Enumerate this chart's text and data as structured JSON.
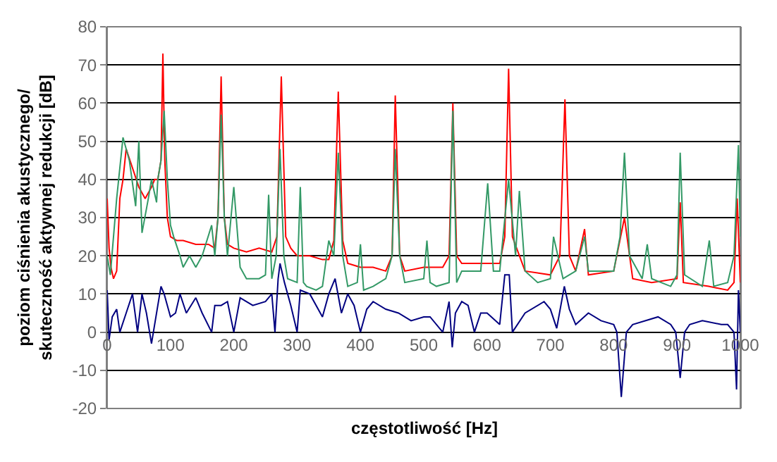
{
  "chart_data": {
    "type": "line",
    "xlabel": "częstotliwość [Hz]",
    "ylabel": "poziom ciśnienia akustycznego/\nskuteczność aktywnej redukcji [dB]",
    "xlim": [
      0,
      1000
    ],
    "xticks": [
      0,
      100,
      200,
      300,
      400,
      500,
      600,
      700,
      800,
      900,
      1000
    ],
    "ylim": [
      -20,
      80
    ],
    "yticks": [
      -20,
      -10,
      0,
      10,
      20,
      30,
      40,
      50,
      60,
      70,
      80
    ],
    "grid": "y",
    "marker": "none",
    "line_style": "solid",
    "series": [
      {
        "color": "#ff0000",
        "x": [
          0,
          3,
          6,
          10,
          15,
          20,
          25,
          30,
          40,
          50,
          60,
          70,
          75,
          80,
          85,
          88,
          91,
          95,
          100,
          110,
          120,
          140,
          160,
          170,
          175,
          180,
          185,
          190,
          200,
          220,
          240,
          260,
          268,
          275,
          282,
          290,
          300,
          320,
          340,
          350,
          358,
          365,
          372,
          380,
          400,
          420,
          440,
          450,
          455,
          462,
          470,
          500,
          530,
          540,
          546,
          552,
          560,
          600,
          620,
          628,
          634,
          640,
          660,
          700,
          715,
          723,
          730,
          740,
          754,
          760,
          800,
          817,
          830,
          860,
          900,
          905,
          910,
          950,
          980,
          990,
          995,
          1000
        ],
        "values": [
          35,
          22,
          17,
          14,
          16,
          35,
          40,
          48,
          43,
          38,
          35,
          38,
          40,
          40,
          45,
          73,
          45,
          30,
          25,
          24,
          24,
          23,
          23,
          22,
          30,
          67,
          30,
          23,
          22,
          21,
          22,
          21,
          25,
          67,
          25,
          22,
          20,
          20,
          19,
          19,
          24,
          63,
          24,
          18,
          17,
          17,
          16,
          20,
          62,
          20,
          16,
          17,
          17,
          20,
          60,
          20,
          18,
          18,
          18,
          25,
          69,
          25,
          16,
          15,
          20,
          61,
          20,
          16,
          27,
          15,
          16,
          30,
          14,
          13,
          14,
          34,
          13,
          12,
          11,
          13,
          35,
          13
        ]
      },
      {
        "color": "#339966",
        "x": [
          0,
          5,
          15,
          25,
          35,
          45,
          50,
          55,
          65,
          70,
          78,
          80,
          85,
          90,
          95,
          100,
          105,
          115,
          120,
          130,
          140,
          150,
          165,
          170,
          175,
          180,
          185,
          190,
          200,
          210,
          220,
          240,
          250,
          255,
          260,
          267,
          273,
          279,
          285,
          300,
          305,
          310,
          315,
          330,
          340,
          350,
          358,
          365,
          372,
          380,
          395,
          400,
          405,
          420,
          440,
          450,
          455,
          462,
          470,
          500,
          505,
          510,
          520,
          540,
          546,
          552,
          560,
          590,
          601,
          610,
          620,
          634,
          645,
          651,
          660,
          680,
          700,
          705,
          720,
          740,
          754,
          760,
          800,
          810,
          817,
          825,
          845,
          853,
          860,
          890,
          900,
          905,
          912,
          940,
          951,
          958,
          980,
          990,
          997,
          1000
        ],
        "values": [
          20,
          15,
          35,
          51,
          45,
          33,
          50,
          26,
          35,
          40,
          34,
          40,
          45,
          58,
          40,
          28,
          25,
          20,
          17,
          20,
          17,
          20,
          28,
          20,
          30,
          57,
          30,
          20,
          38,
          17,
          14,
          14,
          15,
          36,
          14,
          20,
          48,
          20,
          14,
          13,
          38,
          13,
          12,
          11,
          12,
          24,
          20,
          47,
          20,
          12,
          13,
          23,
          11,
          12,
          14,
          20,
          48,
          20,
          13,
          14,
          24,
          13,
          12,
          13,
          58,
          13,
          16,
          16,
          39,
          16,
          16,
          40,
          20,
          37,
          16,
          13,
          14,
          25,
          14,
          16,
          25,
          16,
          16,
          25,
          47,
          20,
          14,
          23,
          14,
          12,
          15,
          47,
          15,
          12,
          24,
          12,
          13,
          20,
          49,
          25
        ]
      },
      {
        "color": "#000080",
        "x": [
          0,
          3,
          8,
          15,
          20,
          30,
          40,
          48,
          55,
          62,
          70,
          80,
          85,
          90,
          100,
          108,
          115,
          125,
          140,
          150,
          165,
          170,
          180,
          190,
          200,
          210,
          230,
          250,
          260,
          265,
          270,
          273,
          280,
          290,
          300,
          305,
          320,
          340,
          350,
          360,
          370,
          380,
          390,
          400,
          410,
          420,
          440,
          460,
          480,
          500,
          510,
          530,
          540,
          545,
          550,
          560,
          570,
          580,
          590,
          600,
          620,
          628,
          635,
          640,
          660,
          690,
          700,
          710,
          722,
          730,
          740,
          760,
          780,
          800,
          805,
          812,
          820,
          830,
          870,
          890,
          898,
          905,
          912,
          920,
          940,
          970,
          980,
          990,
          994,
          997,
          1000
        ],
        "values": [
          11,
          -2,
          4,
          6,
          0,
          5,
          10,
          0,
          10,
          5,
          -3,
          7,
          12,
          10,
          4,
          5,
          10,
          5,
          9,
          5,
          0,
          7,
          7,
          8,
          0,
          9,
          7,
          8,
          10,
          0,
          14,
          18,
          13,
          7,
          0,
          11,
          10,
          4,
          10,
          14,
          5,
          10,
          7,
          0,
          6,
          8,
          6,
          5,
          3,
          4,
          4,
          0,
          8,
          -4,
          5,
          8,
          7,
          0,
          5,
          5,
          2,
          15,
          15,
          0,
          5,
          8,
          6,
          1,
          12,
          6,
          2,
          5,
          3,
          2,
          0,
          -17,
          0,
          2,
          4,
          2,
          0,
          -12,
          0,
          2,
          3,
          2,
          2,
          0,
          -15,
          11,
          0
        ]
      }
    ]
  }
}
